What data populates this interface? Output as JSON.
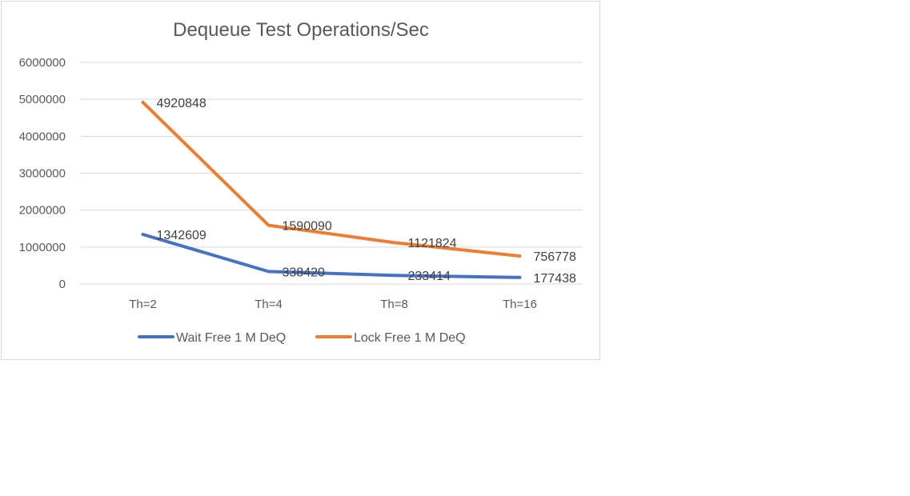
{
  "chart_data": {
    "type": "line",
    "title": "Dequeue Test Operations/Sec",
    "categories": [
      "Th=2",
      "Th=4",
      "Th=8",
      "Th=16"
    ],
    "ylim": [
      0,
      6000000
    ],
    "yticks": [
      0,
      1000000,
      2000000,
      3000000,
      4000000,
      5000000,
      6000000
    ],
    "ytick_labels": [
      "0",
      "1000000",
      "2000000",
      "3000000",
      "4000000",
      "5000000",
      "6000000"
    ],
    "grid": true,
    "legend_position": "bottom",
    "series": [
      {
        "name": "Wait Free 1 M DeQ",
        "color": "#4472c4",
        "values": [
          1342609,
          338420,
          233414,
          177438
        ],
        "labels": [
          "1342609",
          "338420",
          "233414",
          "177438"
        ]
      },
      {
        "name": "Lock Free 1 M DeQ",
        "color": "#ed7d31",
        "values": [
          4920848,
          1590090,
          1121824,
          756778
        ],
        "labels": [
          "4920848",
          "1590090",
          "1121824",
          "756778"
        ]
      }
    ]
  }
}
